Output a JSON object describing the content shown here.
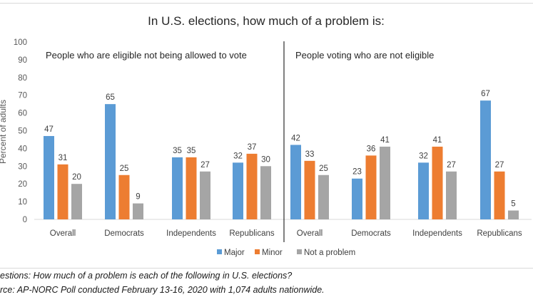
{
  "chart_data": {
    "type": "bar",
    "title": "In U.S. elections, how much of a problem is:",
    "ylabel": "Percent of adults",
    "ylim": [
      0,
      100
    ],
    "yticks": [
      0,
      10,
      20,
      30,
      40,
      50,
      60,
      70,
      80,
      90,
      100
    ],
    "grid": false,
    "legend_position": "bottom",
    "series_names": [
      "Major",
      "Minor",
      "Not a problem"
    ],
    "colors": {
      "Major": "#5b9bd5",
      "Minor": "#ed7d31",
      "Not a problem": "#a5a5a5"
    },
    "panels": [
      {
        "title": "People who are eligible not being allowed to vote",
        "categories": [
          "Overall",
          "Democrats",
          "Independents",
          "Republicans"
        ],
        "series": [
          {
            "name": "Major",
            "values": [
              47,
              65,
              35,
              32
            ]
          },
          {
            "name": "Minor",
            "values": [
              31,
              25,
              35,
              37
            ]
          },
          {
            "name": "Not a problem",
            "values": [
              20,
              9,
              27,
              30
            ]
          }
        ]
      },
      {
        "title": "People voting who are not eligible",
        "categories": [
          "Overall",
          "Democrats",
          "Independents",
          "Republicans"
        ],
        "series": [
          {
            "name": "Major",
            "values": [
              42,
              23,
              32,
              67
            ]
          },
          {
            "name": "Minor",
            "values": [
              33,
              36,
              41,
              27
            ]
          },
          {
            "name": "Not a problem",
            "values": [
              25,
              41,
              27,
              5
            ]
          }
        ]
      }
    ]
  },
  "footnotes": [
    "estions: How much of a problem is each of the following in U.S. elections?",
    "rce: AP-NORC Poll conducted February 13-16, 2020 with 1,074 adults nationwide."
  ]
}
